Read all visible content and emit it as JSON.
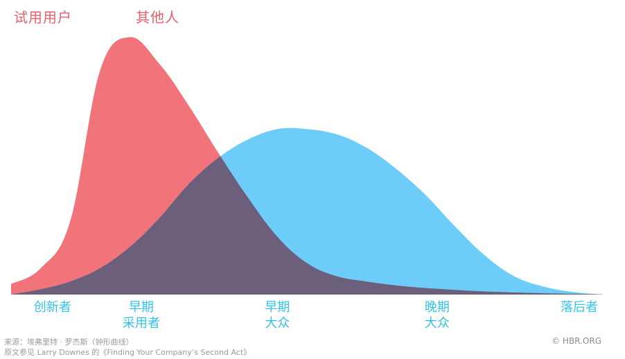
{
  "chart_data": {
    "type": "area",
    "series": [
      {
        "name": "试用用户",
        "color": "#f0747a",
        "x": [
          0,
          0.5,
          1,
          1.5,
          2,
          2.5,
          3,
          3.5,
          4,
          4.5,
          5,
          5.5,
          6,
          6.5,
          7,
          7.5,
          8,
          8.5,
          9,
          9.5,
          10
        ],
        "y": [
          0.04,
          0.1,
          0.28,
          0.85,
          0.98,
          0.88,
          0.72,
          0.54,
          0.37,
          0.22,
          0.12,
          0.07,
          0.05,
          0.035,
          0.025,
          0.018,
          0.012,
          0.008,
          0.005,
          0.003,
          0.001
        ]
      },
      {
        "name": "其他人",
        "color": "#6dcdf8",
        "x": [
          0,
          0.5,
          1,
          1.5,
          2,
          2.5,
          3,
          3.5,
          4,
          4.5,
          5,
          5.5,
          6,
          6.5,
          7,
          7.5,
          8,
          8.5,
          9,
          9.5,
          10
        ],
        "y": [
          0.0,
          0.02,
          0.05,
          0.1,
          0.18,
          0.29,
          0.42,
          0.52,
          0.59,
          0.63,
          0.63,
          0.61,
          0.56,
          0.48,
          0.38,
          0.26,
          0.15,
          0.07,
          0.03,
          0.01,
          0.0
        ]
      }
    ],
    "overlap_color": "#6b5f7b",
    "categories": [
      [
        "创新者"
      ],
      [
        "早期",
        "采用者"
      ],
      [
        "早期",
        "大众"
      ],
      [
        "晚期",
        "大众"
      ],
      [
        "落后者"
      ]
    ],
    "category_x": [
      0.7,
      2.2,
      4.5,
      7.2,
      9.6
    ],
    "xlim": [
      0,
      10
    ],
    "ylim": [
      0,
      1
    ],
    "grid": false,
    "legend_placement": "top-left"
  },
  "source_line1": "来源：埃弗里特 · 罗杰斯（钟形曲线）",
  "source_line2": "原文参见 Larry Downes 的《Finding Your Company’s Second Act》",
  "credit": "© HBR.ORG"
}
